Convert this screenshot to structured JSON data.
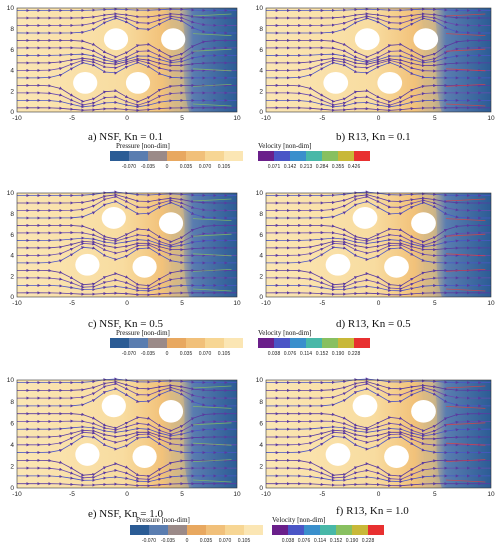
{
  "panels": [
    {
      "id": "a",
      "caption": "a) NSF, Kn = 0.1"
    },
    {
      "id": "b",
      "caption": "b) R13, Kn = 0.1"
    },
    {
      "id": "c",
      "caption": "c) NSF, Kn = 0.5"
    },
    {
      "id": "d",
      "caption": "d) R13, Kn = 0.5"
    },
    {
      "id": "e",
      "caption": "e) NSF, Kn = 1.0"
    },
    {
      "id": "f",
      "caption": "f) R13, Kn = 1.0"
    }
  ],
  "axes": {
    "x_ticks": [
      "-10",
      "-5",
      "0",
      "5",
      "10"
    ],
    "y_ticks": [
      "0",
      "2",
      "4",
      "6",
      "8",
      "10"
    ]
  },
  "legends": [
    {
      "pressure_title": "Pressure [non-dim]",
      "pressure_ticks": [
        "-0.070",
        "-0.035",
        "0",
        "0.035",
        "0.070",
        "0.105"
      ],
      "velocity_title": "Velocity [non-dim]",
      "velocity_ticks": [
        "0.071",
        "0.142",
        "0.213",
        "0.284",
        "0.355",
        "0.426"
      ]
    },
    {
      "pressure_title": "Pressure [non-dim]",
      "pressure_ticks": [
        "-0.070",
        "-0.035",
        "0",
        "0.035",
        "0.070",
        "0.105"
      ],
      "velocity_title": "Velocity [non-dim]",
      "velocity_ticks": [
        "0.038",
        "0.076",
        "0.114",
        "0.152",
        "0.190",
        "0.228"
      ]
    },
    {
      "pressure_title": "Pressure [non-dim]",
      "pressure_ticks": [
        "-0.070",
        "-0.035",
        "0",
        "0.035",
        "0.070",
        "0.105"
      ],
      "velocity_title": "Velocity [non-dim]",
      "velocity_ticks": [
        "0.038",
        "0.076",
        "0.114",
        "0.152",
        "0.190",
        "0.228"
      ]
    }
  ],
  "colors": {
    "pressure_scale": [
      "#2b5c95",
      "#5a7db0",
      "#9b8a88",
      "#e8a860",
      "#f1c07a",
      "#f7d694",
      "#fbe6b4"
    ],
    "velocity_scale": [
      "#6a1f8a",
      "#4a55c6",
      "#3a8fcc",
      "#48b8a8",
      "#88c060",
      "#c8b838",
      "#e83030"
    ]
  }
}
